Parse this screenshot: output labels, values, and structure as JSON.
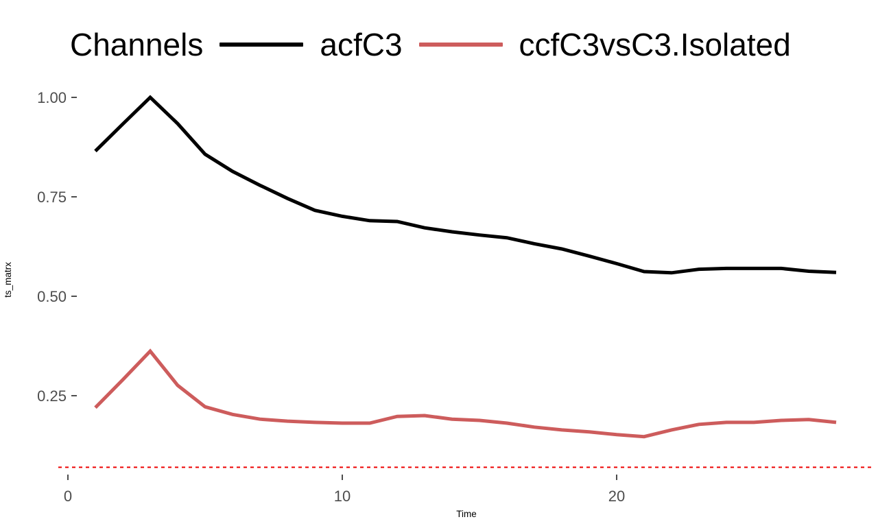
{
  "legend": {
    "title": "Channels",
    "items": [
      {
        "label": "acfC3",
        "color": "#000000"
      },
      {
        "label": "ccfC3vsC3.Isolated",
        "color": "#CD5C5C"
      }
    ]
  },
  "axes": {
    "x_label": "Time",
    "y_label": "ts_matrx",
    "tick_color": "#4d4d4d",
    "x_ticks": [
      {
        "value": 0,
        "label": "0"
      },
      {
        "value": 10,
        "label": "10"
      },
      {
        "value": 20,
        "label": "20"
      }
    ],
    "y_ticks": [
      {
        "value": 1.0,
        "label": "1.00"
      },
      {
        "value": 0.75,
        "label": "0.75"
      },
      {
        "value": 0.5,
        "label": "0.50"
      },
      {
        "value": 0.25,
        "label": "0.25"
      }
    ]
  },
  "chart_data": {
    "type": "line",
    "title": "",
    "xlabel": "Time",
    "ylabel": "ts_matrx",
    "legend_title": "Channels",
    "legend_position": "top",
    "grid": false,
    "xlim": [
      -0.35,
      29.5
    ],
    "ylim": [
      0.04,
      1.03
    ],
    "x": [
      1,
      2,
      3,
      4,
      5,
      6,
      7,
      8,
      9,
      10,
      11,
      12,
      13,
      14,
      15,
      16,
      17,
      18,
      19,
      20,
      21,
      22,
      23,
      24,
      25,
      26,
      27,
      28
    ],
    "series": [
      {
        "name": "acfC3",
        "color": "#000000",
        "values": [
          0.865,
          0.933,
          1.0,
          0.934,
          0.857,
          0.814,
          0.779,
          0.746,
          0.716,
          0.701,
          0.69,
          0.688,
          0.672,
          0.662,
          0.654,
          0.647,
          0.632,
          0.619,
          0.601,
          0.582,
          0.562,
          0.559,
          0.568,
          0.57,
          0.57,
          0.57,
          0.563,
          0.56
        ]
      },
      {
        "name": "ccfC3vsC3.Isolated",
        "color": "#CD5C5C",
        "values": [
          0.22,
          0.29,
          0.362,
          0.276,
          0.222,
          0.203,
          0.191,
          0.186,
          0.183,
          0.181,
          0.181,
          0.198,
          0.2,
          0.191,
          0.188,
          0.181,
          0.171,
          0.164,
          0.159,
          0.152,
          0.147,
          0.164,
          0.178,
          0.183,
          0.183,
          0.188,
          0.19,
          0.183
        ]
      }
    ],
    "reference_line": {
      "y": 0.07,
      "color": "#EE0000",
      "style": "dashed"
    }
  }
}
